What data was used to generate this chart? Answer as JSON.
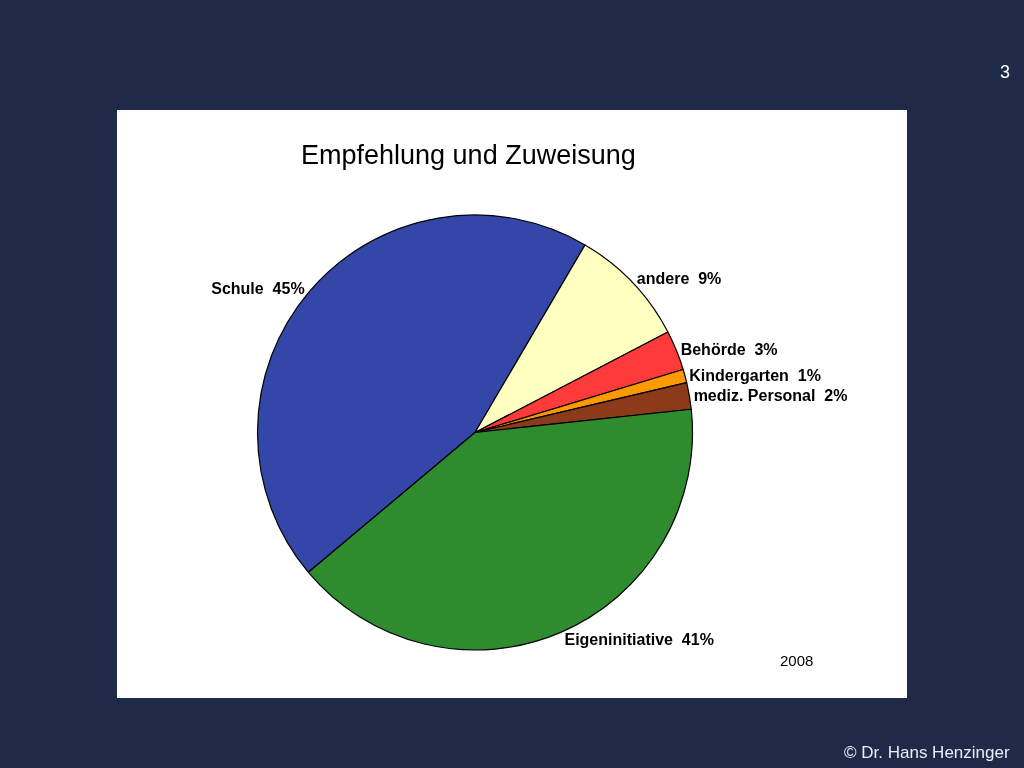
{
  "chart_data": {
    "type": "pie",
    "title": "Empfehlung und Zuweisung",
    "categories": [
      "Schule",
      "andere",
      "Behörde",
      "Kindergarten",
      "mediz. Personal",
      "Eigeninitiative"
    ],
    "values": [
      45,
      9,
      3,
      1,
      2,
      41
    ],
    "value_labels": [
      "45%",
      "9%",
      "3%",
      "1%",
      "2%",
      "41%"
    ],
    "colors": [
      "#3447a8",
      "#ffffc0",
      "#ff3a3a",
      "#ff9900",
      "#8b3a1a",
      "#2e8b2e"
    ],
    "annotations": [
      "2008",
      "© Dr. Hans Henzinger",
      "3"
    ],
    "legend": false
  }
}
